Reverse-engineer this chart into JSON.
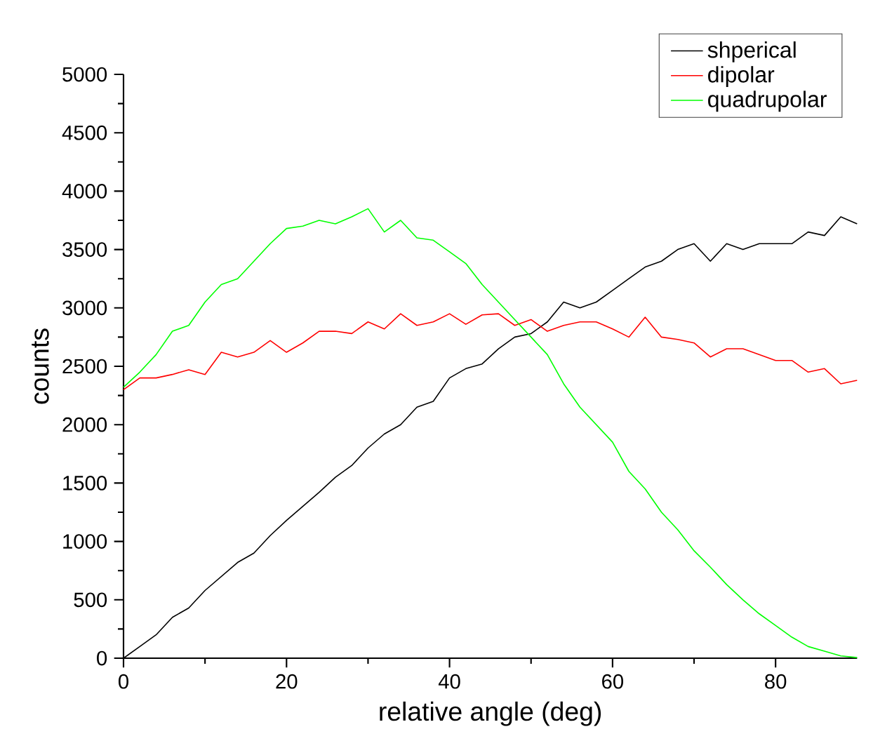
{
  "chart_data": {
    "type": "line",
    "xlabel": "relative angle (deg)",
    "ylabel": "counts",
    "x": [
      0,
      2,
      4,
      6,
      8,
      10,
      12,
      14,
      16,
      18,
      20,
      22,
      24,
      26,
      28,
      30,
      32,
      34,
      36,
      38,
      40,
      42,
      44,
      46,
      48,
      50,
      52,
      54,
      56,
      58,
      60,
      62,
      64,
      66,
      68,
      70,
      72,
      74,
      76,
      78,
      80,
      82,
      84,
      86,
      88,
      90
    ],
    "series": [
      {
        "name": "shperical",
        "color": "#000000",
        "values": [
          0,
          100,
          200,
          350,
          430,
          580,
          700,
          820,
          900,
          1050,
          1180,
          1300,
          1420,
          1550,
          1650,
          1800,
          1920,
          2000,
          2150,
          2200,
          2400,
          2480,
          2520,
          2650,
          2750,
          2780,
          2880,
          3050,
          3000,
          3050,
          3150,
          3250,
          3350,
          3400,
          3500,
          3550,
          3400,
          3550,
          3500,
          3550,
          3550,
          3550,
          3650,
          3620,
          3780,
          3720
        ]
      },
      {
        "name": "dipolar",
        "color": "#ff0000",
        "values": [
          2300,
          2400,
          2400,
          2430,
          2470,
          2430,
          2620,
          2580,
          2620,
          2720,
          2620,
          2700,
          2800,
          2800,
          2780,
          2880,
          2820,
          2950,
          2850,
          2880,
          2950,
          2860,
          2940,
          2950,
          2850,
          2900,
          2800,
          2850,
          2880,
          2880,
          2820,
          2750,
          2920,
          2750,
          2730,
          2700,
          2580,
          2650,
          2650,
          2600,
          2550,
          2550,
          2450,
          2480,
          2350,
          2380
        ]
      },
      {
        "name": "quadrupolar",
        "color": "#00ff00",
        "values": [
          2320,
          2450,
          2600,
          2800,
          2850,
          3050,
          3200,
          3250,
          3400,
          3550,
          3680,
          3700,
          3750,
          3720,
          3780,
          3850,
          3650,
          3750,
          3600,
          3580,
          3480,
          3380,
          3200,
          3050,
          2900,
          2750,
          2600,
          2350,
          2150,
          2000,
          1850,
          1600,
          1450,
          1250,
          1100,
          920,
          780,
          630,
          500,
          380,
          280,
          180,
          100,
          60,
          20,
          5
        ]
      }
    ],
    "xlim": [
      0,
      90
    ],
    "xticks": [
      0,
      20,
      40,
      60,
      80
    ],
    "ylim": [
      0,
      5000
    ],
    "yticks": [
      0,
      500,
      1000,
      1500,
      2000,
      2500,
      3000,
      3500,
      4000,
      4500,
      5000
    ],
    "grid": false,
    "legend": "top right",
    "marker": "none",
    "line_style": "solid"
  }
}
